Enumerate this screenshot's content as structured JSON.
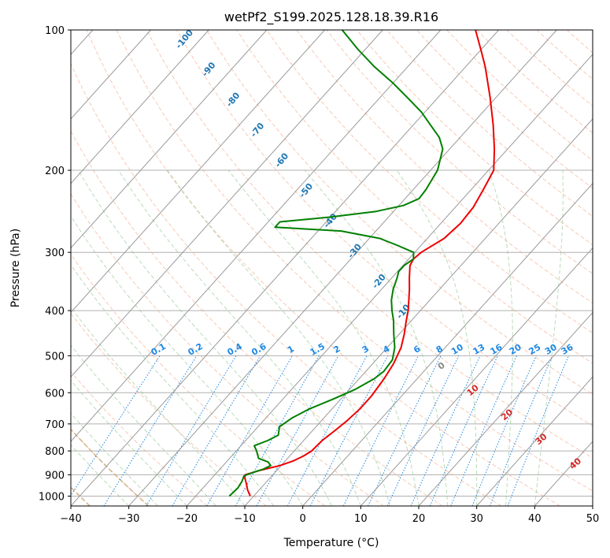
{
  "chart_data": {
    "type": "skew-t",
    "title": "wetPf2_S199.2025.128.18.39.R16",
    "xlabel": "Temperature (°C)",
    "ylabel": "Pressure (hPa)",
    "xlim": [
      -40,
      50
    ],
    "ylim": [
      1050,
      100
    ],
    "y_scale": "log",
    "grid": true,
    "x_ticks": [
      "−40",
      "−30",
      "−20",
      "−10",
      "0",
      "10",
      "20",
      "30",
      "40",
      "50"
    ],
    "y_ticks": [
      "100",
      "200",
      "300",
      "400",
      "500",
      "600",
      "700",
      "800",
      "900",
      "1000"
    ],
    "mixing_ratio_labels": [
      "0.1",
      "0.2",
      "0.4",
      "0.6",
      "1",
      "1.5",
      "2",
      "3",
      "4",
      "6",
      "8",
      "10",
      "13",
      "16",
      "20",
      "25",
      "30",
      "36"
    ],
    "cool_isotherm_labels": [
      "-100",
      "-90",
      "-80",
      "-70",
      "-60",
      "-50",
      "-40",
      "-30",
      "-20",
      "-10"
    ],
    "zero_label": "0",
    "warm_isotherm_labels": [
      "10",
      "20",
      "30",
      "40"
    ],
    "series": [
      {
        "color": "#ee0000",
        "points": [
          [
            1000,
            -10.6
          ],
          [
            970,
            -12
          ],
          [
            940,
            -13.2
          ],
          [
            915,
            -14.3
          ],
          [
            900,
            -14.8
          ],
          [
            880,
            -12.8
          ],
          [
            860,
            -10.2
          ],
          [
            840,
            -8.6
          ],
          [
            820,
            -7.6
          ],
          [
            800,
            -7.0
          ],
          [
            760,
            -6.8
          ],
          [
            720,
            -6.1
          ],
          [
            690,
            -5.6
          ],
          [
            650,
            -5.2
          ],
          [
            610,
            -5.2
          ],
          [
            560,
            -5.7
          ],
          [
            520,
            -6.4
          ],
          [
            480,
            -7.6
          ],
          [
            450,
            -9.1
          ],
          [
            420,
            -10.9
          ],
          [
            400,
            -12.1
          ],
          [
            380,
            -13.6
          ],
          [
            360,
            -15.2
          ],
          [
            340,
            -17.0
          ],
          [
            320,
            -18.8
          ],
          [
            310,
            -19.2
          ],
          [
            300,
            -18.9
          ],
          [
            280,
            -17.1
          ],
          [
            260,
            -16.6
          ],
          [
            240,
            -16.9
          ],
          [
            220,
            -17.9
          ],
          [
            200,
            -19.1
          ],
          [
            180,
            -22.3
          ],
          [
            160,
            -26.2
          ],
          [
            140,
            -30.9
          ],
          [
            120,
            -36.6
          ],
          [
            110,
            -40.1
          ],
          [
            100,
            -44.0
          ]
        ]
      },
      {
        "color": "#008000",
        "points": [
          [
            1000,
            -14.2
          ],
          [
            960,
            -14.0
          ],
          [
            930,
            -14.3
          ],
          [
            905,
            -14.8
          ],
          [
            890,
            -13.8
          ],
          [
            875,
            -12.5
          ],
          [
            860,
            -11.8
          ],
          [
            845,
            -12.8
          ],
          [
            830,
            -15.0
          ],
          [
            800,
            -16.5
          ],
          [
            780,
            -17.7
          ],
          [
            760,
            -16.2
          ],
          [
            740,
            -15.2
          ],
          [
            710,
            -16.3
          ],
          [
            680,
            -15.5
          ],
          [
            650,
            -13.9
          ],
          [
            620,
            -11.4
          ],
          [
            590,
            -9.0
          ],
          [
            560,
            -7.4
          ],
          [
            540,
            -6.9
          ],
          [
            510,
            -7.2
          ],
          [
            480,
            -8.7
          ],
          [
            450,
            -10.9
          ],
          [
            420,
            -13.1
          ],
          [
            400,
            -14.9
          ],
          [
            380,
            -16.6
          ],
          [
            360,
            -18.0
          ],
          [
            340,
            -19.1
          ],
          [
            330,
            -19.8
          ],
          [
            320,
            -19.8
          ],
          [
            310,
            -19.2
          ],
          [
            300,
            -20.2
          ],
          [
            290,
            -24.0
          ],
          [
            280,
            -28.2
          ],
          [
            270,
            -36.0
          ],
          [
            265,
            -48.0
          ],
          [
            258,
            -48.0
          ],
          [
            252,
            -40.0
          ],
          [
            245,
            -33.0
          ],
          [
            238,
            -29.2
          ],
          [
            230,
            -27.6
          ],
          [
            220,
            -27.8
          ],
          [
            200,
            -28.8
          ],
          [
            180,
            -31.2
          ],
          [
            170,
            -33.6
          ],
          [
            160,
            -37.0
          ],
          [
            150,
            -40.6
          ],
          [
            140,
            -45.1
          ],
          [
            130,
            -50.0
          ],
          [
            120,
            -55.7
          ],
          [
            110,
            -61.3
          ],
          [
            100,
            -67.0
          ]
        ]
      }
    ]
  }
}
